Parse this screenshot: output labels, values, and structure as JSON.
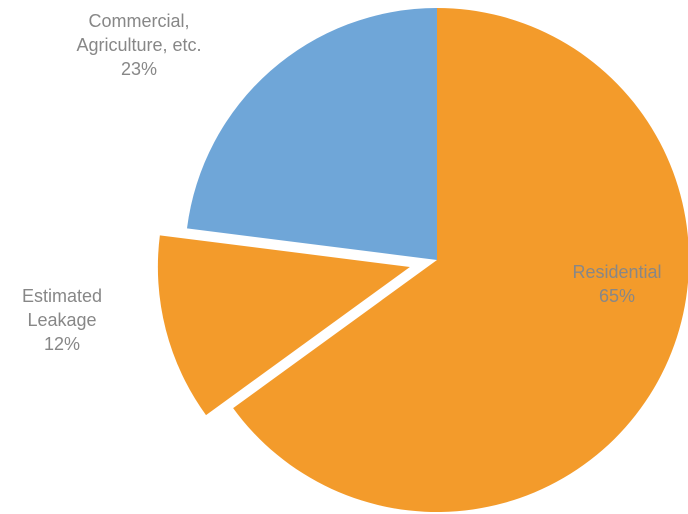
{
  "chart_data": {
    "type": "pie",
    "title": "",
    "start_angle_deg": 0,
    "direction": "clockwise",
    "slices": [
      {
        "label_lines": [
          "Residential",
          "65%"
        ],
        "value": 65,
        "color": "#f39b2b",
        "label_color": "#878787",
        "exploded": false
      },
      {
        "label_lines": [
          "Estimated",
          "Leakage",
          "12%"
        ],
        "value": 12,
        "color": "#f39b2b",
        "label_color": "#878787",
        "exploded": true
      },
      {
        "label_lines": [
          "Commercial,",
          "Agriculture, etc.",
          "23%"
        ],
        "value": 23,
        "color": "#6fa6d8",
        "label_color": "#878787",
        "exploded": false
      }
    ]
  }
}
